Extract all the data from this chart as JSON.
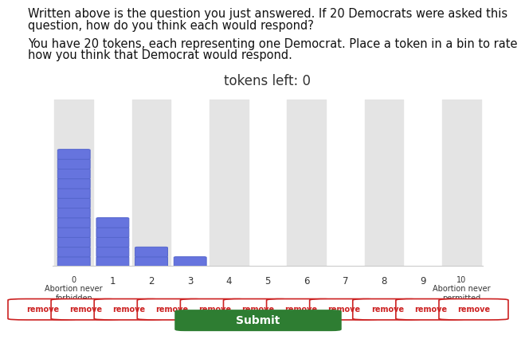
{
  "title": "tokens left: 0",
  "text_line1": "Written above is the question you just answered. If 20 Democrats were asked this",
  "text_line2": "question, how do you think each would respond?",
  "text_line3": "You have 20 tokens, each representing one Democrat. Place a token in a bin to rate",
  "text_line4": "how you think that Democrat would respond.",
  "bins": [
    0,
    1,
    2,
    3,
    4,
    5,
    6,
    7,
    8,
    9,
    10
  ],
  "counts": [
    12,
    5,
    2,
    1,
    0,
    0,
    0,
    0,
    0,
    0,
    0
  ],
  "xlabel_left": "Abortion never\nforbidden",
  "xlabel_right": "Abortion never\npermitted",
  "token_color": "#6674de",
  "token_edge_color": "#5566cc",
  "bg_color": "#ffffff",
  "stripe_color": "#e4e4e4",
  "remove_button_color": "#ffffff",
  "remove_text_color": "#cc2222",
  "submit_color": "#2e7d32",
  "title_fontsize": 12,
  "text_fontsize": 10.5
}
